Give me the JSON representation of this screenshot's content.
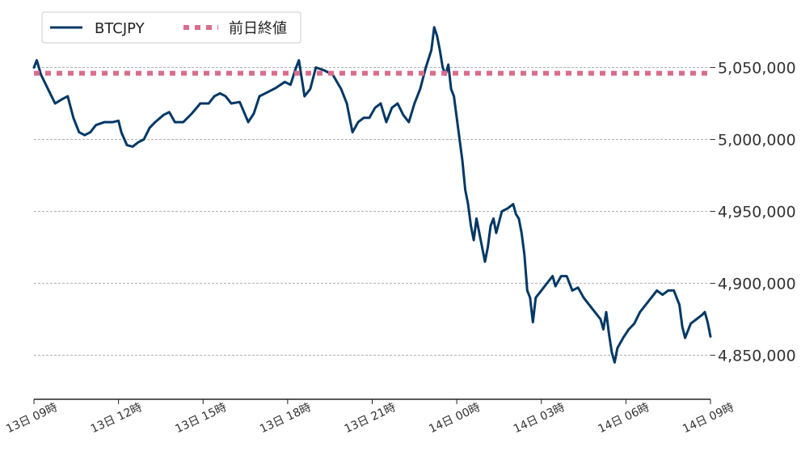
{
  "chart_data": {
    "type": "line",
    "title": "",
    "xlabel": "",
    "ylabel": "",
    "x_range_hours": [
      0,
      24
    ],
    "ylim": [
      4820000,
      5090000
    ],
    "grid": "horizontal dashed",
    "legend_position": "top-left",
    "y_ticks": [
      {
        "value": 4850000,
        "label": "4,850,000"
      },
      {
        "value": 4900000,
        "label": "4,900,000"
      },
      {
        "value": 4950000,
        "label": "4,950,000"
      },
      {
        "value": 5000000,
        "label": "5,000,000"
      },
      {
        "value": 5050000,
        "label": "5,050,000"
      }
    ],
    "x_ticks": [
      {
        "hour": 0,
        "label": "13日 09時"
      },
      {
        "hour": 3,
        "label": "13日 12時"
      },
      {
        "hour": 6,
        "label": "13日 15時"
      },
      {
        "hour": 9,
        "label": "13日 18時"
      },
      {
        "hour": 12,
        "label": "13日 21時"
      },
      {
        "hour": 15,
        "label": "14日 00時"
      },
      {
        "hour": 18,
        "label": "14日 03時"
      },
      {
        "hour": 21,
        "label": "14日 06時"
      },
      {
        "hour": 24,
        "label": "14日 09時"
      }
    ],
    "series": [
      {
        "name": "BTCJPY",
        "color": "#003865",
        "style": "solid",
        "points": [
          [
            0.0,
            5050000
          ],
          [
            0.1,
            5055000
          ],
          [
            0.25,
            5045000
          ],
          [
            0.5,
            5035000
          ],
          [
            0.75,
            5025000
          ],
          [
            1.0,
            5028000
          ],
          [
            1.2,
            5030000
          ],
          [
            1.4,
            5015000
          ],
          [
            1.6,
            5005000
          ],
          [
            1.8,
            5003000
          ],
          [
            2.0,
            5005000
          ],
          [
            2.2,
            5010000
          ],
          [
            2.5,
            5012000
          ],
          [
            2.8,
            5012000
          ],
          [
            3.0,
            5013000
          ],
          [
            3.1,
            5005000
          ],
          [
            3.3,
            4996000
          ],
          [
            3.5,
            4995000
          ],
          [
            3.7,
            4998000
          ],
          [
            3.9,
            5000000
          ],
          [
            4.1,
            5008000
          ],
          [
            4.3,
            5012000
          ],
          [
            4.6,
            5017000
          ],
          [
            4.8,
            5019000
          ],
          [
            5.0,
            5012000
          ],
          [
            5.3,
            5012000
          ],
          [
            5.6,
            5018000
          ],
          [
            5.9,
            5025000
          ],
          [
            6.2,
            5025000
          ],
          [
            6.4,
            5030000
          ],
          [
            6.6,
            5032000
          ],
          [
            6.8,
            5030000
          ],
          [
            7.0,
            5025000
          ],
          [
            7.3,
            5026000
          ],
          [
            7.6,
            5012000
          ],
          [
            7.8,
            5018000
          ],
          [
            8.0,
            5030000
          ],
          [
            8.3,
            5033000
          ],
          [
            8.6,
            5036000
          ],
          [
            8.9,
            5040000
          ],
          [
            9.1,
            5038000
          ],
          [
            9.3,
            5050000
          ],
          [
            9.4,
            5055000
          ],
          [
            9.6,
            5030000
          ],
          [
            9.8,
            5035000
          ],
          [
            10.0,
            5050000
          ],
          [
            10.3,
            5048000
          ],
          [
            10.6,
            5045000
          ],
          [
            10.9,
            5035000
          ],
          [
            11.1,
            5025000
          ],
          [
            11.3,
            5005000
          ],
          [
            11.5,
            5012000
          ],
          [
            11.7,
            5015000
          ],
          [
            11.9,
            5015000
          ],
          [
            12.1,
            5022000
          ],
          [
            12.3,
            5025000
          ],
          [
            12.5,
            5012000
          ],
          [
            12.7,
            5022000
          ],
          [
            12.9,
            5025000
          ],
          [
            13.1,
            5017000
          ],
          [
            13.3,
            5012000
          ],
          [
            13.5,
            5025000
          ],
          [
            13.7,
            5035000
          ],
          [
            13.9,
            5050000
          ],
          [
            14.1,
            5062000
          ],
          [
            14.2,
            5078000
          ],
          [
            14.3,
            5072000
          ],
          [
            14.4,
            5062000
          ],
          [
            14.5,
            5050000
          ],
          [
            14.6,
            5045000
          ],
          [
            14.7,
            5052000
          ],
          [
            14.8,
            5035000
          ],
          [
            14.9,
            5030000
          ],
          [
            15.0,
            5015000
          ],
          [
            15.1,
            5000000
          ],
          [
            15.2,
            4985000
          ],
          [
            15.3,
            4965000
          ],
          [
            15.4,
            4955000
          ],
          [
            15.5,
            4940000
          ],
          [
            15.6,
            4930000
          ],
          [
            15.7,
            4945000
          ],
          [
            15.8,
            4935000
          ],
          [
            15.9,
            4925000
          ],
          [
            16.0,
            4915000
          ],
          [
            16.1,
            4925000
          ],
          [
            16.2,
            4940000
          ],
          [
            16.3,
            4945000
          ],
          [
            16.4,
            4935000
          ],
          [
            16.6,
            4950000
          ],
          [
            16.8,
            4952000
          ],
          [
            17.0,
            4955000
          ],
          [
            17.1,
            4948000
          ],
          [
            17.2,
            4945000
          ],
          [
            17.3,
            4935000
          ],
          [
            17.4,
            4920000
          ],
          [
            17.5,
            4895000
          ],
          [
            17.6,
            4890000
          ],
          [
            17.7,
            4873000
          ],
          [
            17.8,
            4890000
          ],
          [
            18.0,
            4895000
          ],
          [
            18.2,
            4900000
          ],
          [
            18.4,
            4905000
          ],
          [
            18.5,
            4898000
          ],
          [
            18.7,
            4905000
          ],
          [
            18.9,
            4905000
          ],
          [
            19.1,
            4895000
          ],
          [
            19.3,
            4897000
          ],
          [
            19.5,
            4890000
          ],
          [
            19.7,
            4885000
          ],
          [
            19.9,
            4880000
          ],
          [
            20.1,
            4875000
          ],
          [
            20.2,
            4868000
          ],
          [
            20.3,
            4880000
          ],
          [
            20.4,
            4865000
          ],
          [
            20.5,
            4852000
          ],
          [
            20.6,
            4845000
          ],
          [
            20.7,
            4855000
          ],
          [
            20.9,
            4862000
          ],
          [
            21.1,
            4868000
          ],
          [
            21.3,
            4872000
          ],
          [
            21.5,
            4880000
          ],
          [
            21.7,
            4885000
          ],
          [
            21.9,
            4890000
          ],
          [
            22.1,
            4895000
          ],
          [
            22.3,
            4892000
          ],
          [
            22.5,
            4895000
          ],
          [
            22.7,
            4895000
          ],
          [
            22.9,
            4885000
          ],
          [
            23.0,
            4870000
          ],
          [
            23.1,
            4862000
          ],
          [
            23.3,
            4872000
          ],
          [
            23.5,
            4875000
          ],
          [
            23.7,
            4878000
          ],
          [
            23.8,
            4880000
          ],
          [
            23.9,
            4873000
          ],
          [
            24.0,
            4863000
          ]
        ]
      },
      {
        "name": "前日終値",
        "color": "#d96d8c",
        "style": "dotted",
        "value": 5046000
      }
    ]
  }
}
